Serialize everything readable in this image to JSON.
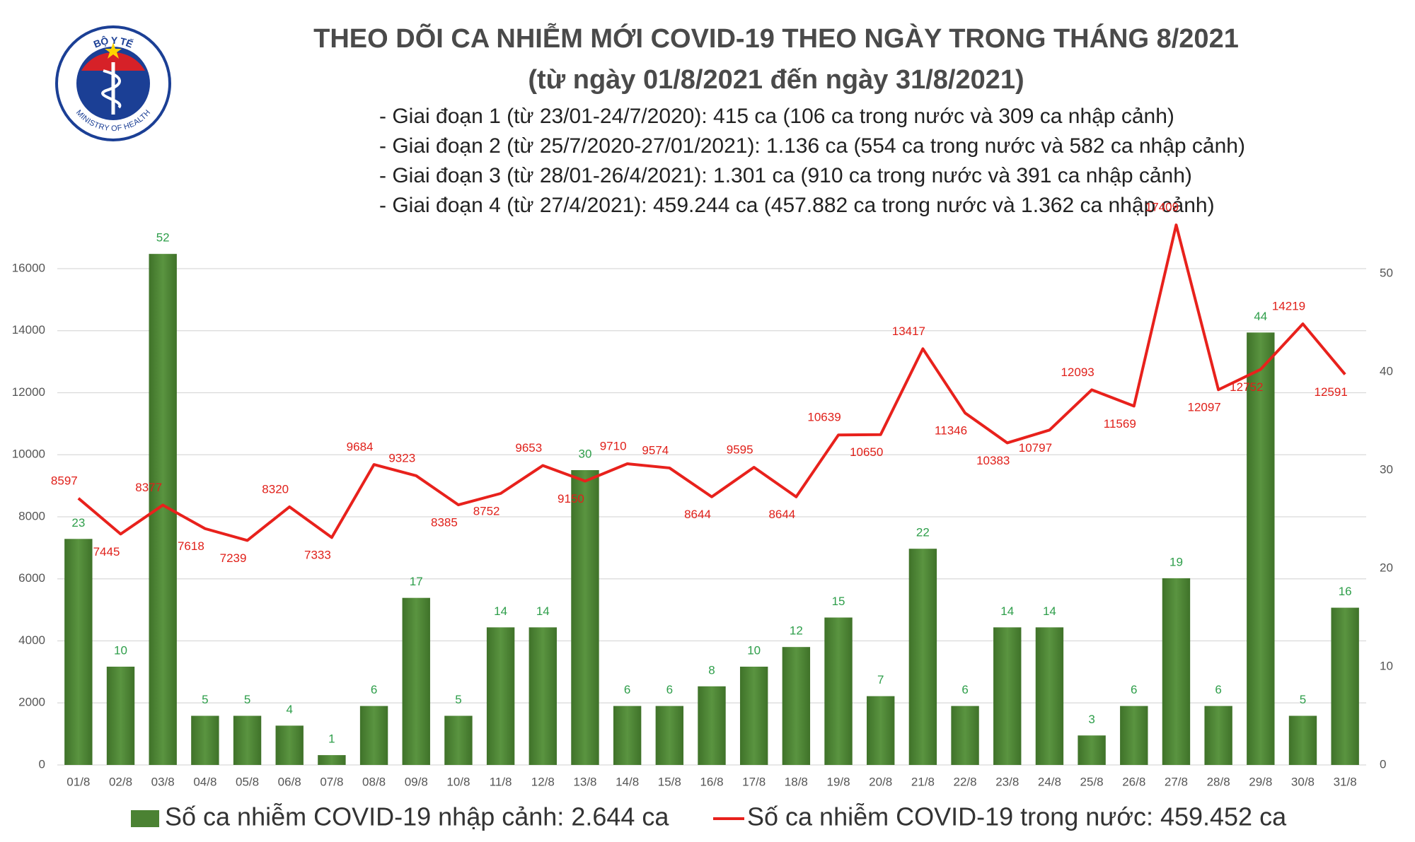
{
  "chart_data": {
    "type": "combo",
    "title": "THEO DÕI CA NHIỄM MỚI COVID-19 THEO NGÀY TRONG THÁNG 8/2021",
    "subtitle": "(từ ngày 01/8/2021 đến ngày 31/8/2021)",
    "annotations": [
      "- Giai đoạn 1 (từ 23/01-24/7/2020): 415 ca (106 ca trong nước và 309 ca nhập cảnh)",
      "- Giai đoạn 2 (từ 25/7/2020-27/01/2021): 1.136 ca (554 ca trong nước và 582 ca nhập cảnh)",
      "- Giai đoạn 3 (từ 28/01-26/4/2021): 1.301 ca (910 ca trong nước và 391 ca nhập cảnh)",
      "- Giai đoạn 4 (từ 27/4/2021): 459.244 ca (457.882 ca trong nước và 1.362 ca nhập cảnh)"
    ],
    "logo": {
      "top_text": "BỘ Y TẾ",
      "bottom_text": "MINISTRY OF HEALTH"
    },
    "categories": [
      "01/8",
      "02/8",
      "03/8",
      "04/8",
      "05/8",
      "06/8",
      "07/8",
      "08/8",
      "09/8",
      "10/8",
      "11/8",
      "12/8",
      "13/8",
      "14/8",
      "15/8",
      "16/8",
      "17/8",
      "18/8",
      "19/8",
      "20/8",
      "21/8",
      "22/8",
      "23/8",
      "24/8",
      "25/8",
      "26/8",
      "27/8",
      "28/8",
      "29/8",
      "30/8",
      "31/8"
    ],
    "series": [
      {
        "name": "Số ca nhiễm COVID-19 nhập cảnh: 2.644 ca",
        "type": "bar",
        "axis": "y2",
        "color": "#4b8233",
        "label_color": "#2e9e4a",
        "values": [
          23,
          10,
          52,
          5,
          5,
          4,
          1,
          6,
          17,
          5,
          14,
          14,
          30,
          6,
          6,
          8,
          10,
          12,
          15,
          7,
          22,
          6,
          14,
          14,
          3,
          6,
          19,
          6,
          44,
          5,
          16
        ]
      },
      {
        "name": "Số ca nhiễm COVID-19 trong nước: 459.452 ca",
        "type": "line",
        "axis": "y",
        "color": "#e8211c",
        "label_color": "#e0201a",
        "values": [
          8597,
          7445,
          8377,
          7618,
          7239,
          8320,
          7333,
          9684,
          9323,
          8385,
          8752,
          9653,
          9150,
          9710,
          9574,
          8644,
          9595,
          8644,
          10639,
          10650,
          13417,
          11346,
          10383,
          10797,
          12093,
          11569,
          17409,
          12097,
          12752,
          14219,
          12591
        ]
      }
    ],
    "ylim": [
      0,
      16000
    ],
    "yticks": [
      0,
      2000,
      4000,
      6000,
      8000,
      10000,
      12000,
      14000,
      16000
    ],
    "y2lim": [
      0,
      50.5
    ],
    "y2ticks": [
      0,
      10,
      20,
      30,
      40,
      50
    ],
    "grid": true
  }
}
